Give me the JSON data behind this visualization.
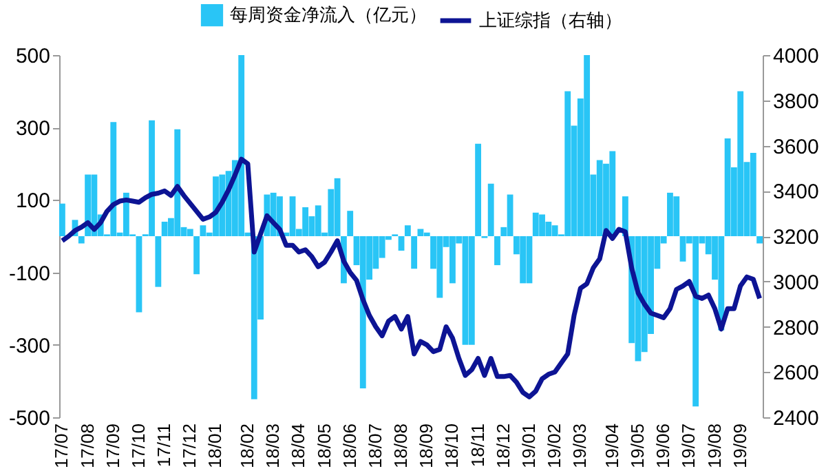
{
  "chart_data": {
    "type": "bar",
    "categories": [
      "17/07",
      null,
      null,
      null,
      "17/08",
      null,
      null,
      null,
      "17/09",
      null,
      null,
      null,
      "17/10",
      null,
      null,
      null,
      "17/11",
      null,
      null,
      null,
      "17/12",
      null,
      null,
      null,
      "18/01",
      null,
      null,
      null,
      null,
      "18/02",
      null,
      null,
      null,
      "18/03",
      null,
      null,
      null,
      "18/04",
      null,
      null,
      null,
      "18/05",
      null,
      null,
      null,
      "18/06",
      null,
      null,
      null,
      "18/07",
      null,
      null,
      null,
      "18/08",
      null,
      null,
      null,
      "18/09",
      null,
      null,
      null,
      "18/10",
      null,
      null,
      null,
      "18/11",
      null,
      null,
      null,
      "18/12",
      null,
      null,
      null,
      "19/01",
      null,
      null,
      null,
      "19/02",
      null,
      null,
      null,
      "19/03",
      null,
      null,
      null,
      null,
      "19/04",
      null,
      null,
      null,
      "19/05",
      null,
      null,
      null,
      "19/06",
      null,
      null,
      null,
      "19/07",
      null,
      null,
      null,
      "19/08",
      null,
      null,
      null,
      "19/09",
      null,
      null,
      null
    ],
    "series": [
      {
        "name": "每周资金净流入（亿元）",
        "color": "#29c5f6",
        "values": [
          90,
          null,
          45,
          -20,
          170,
          170,
          60,
          5,
          315,
          10,
          120,
          5,
          -210,
          5,
          320,
          -140,
          40,
          50,
          295,
          25,
          20,
          -105,
          30,
          10,
          165,
          170,
          180,
          210,
          500,
          10,
          -450,
          -230,
          115,
          120,
          110,
          10,
          110,
          20,
          80,
          55,
          85,
          10,
          130,
          160,
          -130,
          70,
          -80,
          -420,
          -120,
          -90,
          -60,
          -10,
          5,
          -40,
          30,
          -90,
          20,
          10,
          -90,
          -170,
          -30,
          -130,
          -20,
          -300,
          -300,
          255,
          -5,
          145,
          -80,
          25,
          115,
          -50,
          -130,
          -130,
          65,
          60,
          40,
          30,
          5,
          400,
          305,
          380,
          500,
          170,
          210,
          200,
          235,
          null,
          110,
          -295,
          -345,
          -320,
          -270,
          -90,
          -20,
          120,
          110,
          -70,
          -20,
          -470,
          -20,
          -50,
          -120,
          -260,
          270,
          190,
          400,
          205,
          230,
          -20
        ]
      },
      {
        "name": "上证综指（右轴）",
        "type": "line",
        "axis": "y2",
        "color": "#0d1494",
        "values": [
          3180,
          3200,
          3225,
          3240,
          3260,
          3230,
          3260,
          3310,
          3340,
          3355,
          3360,
          3355,
          3350,
          3370,
          3385,
          3390,
          3400,
          3380,
          3420,
          3380,
          3345,
          3310,
          3275,
          3285,
          3305,
          3350,
          3405,
          3470,
          3540,
          3520,
          3130,
          3210,
          3290,
          3260,
          3230,
          3160,
          3160,
          3130,
          3140,
          3110,
          3065,
          3085,
          3130,
          3180,
          3090,
          3040,
          3005,
          2920,
          2850,
          2800,
          2760,
          2825,
          2845,
          2790,
          2845,
          2680,
          2735,
          2720,
          2690,
          2700,
          2800,
          2750,
          2660,
          2585,
          2610,
          2660,
          2585,
          2660,
          2580,
          2580,
          2585,
          2555,
          2510,
          2490,
          2515,
          2570,
          2590,
          2600,
          2640,
          2680,
          2850,
          2970,
          2990,
          3060,
          3100,
          3225,
          3190,
          3230,
          3220,
          3060,
          2950,
          2900,
          2860,
          2850,
          2840,
          2880,
          2965,
          2980,
          3000,
          2935,
          2925,
          2940,
          2880,
          2790,
          2880,
          2880,
          2980,
          3020,
          3010,
          2925
        ]
      }
    ],
    "ylim": [
      -500,
      500
    ],
    "yticks": [
      -500,
      -300,
      -100,
      100,
      300,
      500
    ],
    "y2lim": [
      2400,
      4000
    ],
    "y2ticks": [
      2400,
      2600,
      2800,
      3000,
      3200,
      3400,
      3600,
      3800,
      4000
    ],
    "legend": "top",
    "grid": false
  }
}
